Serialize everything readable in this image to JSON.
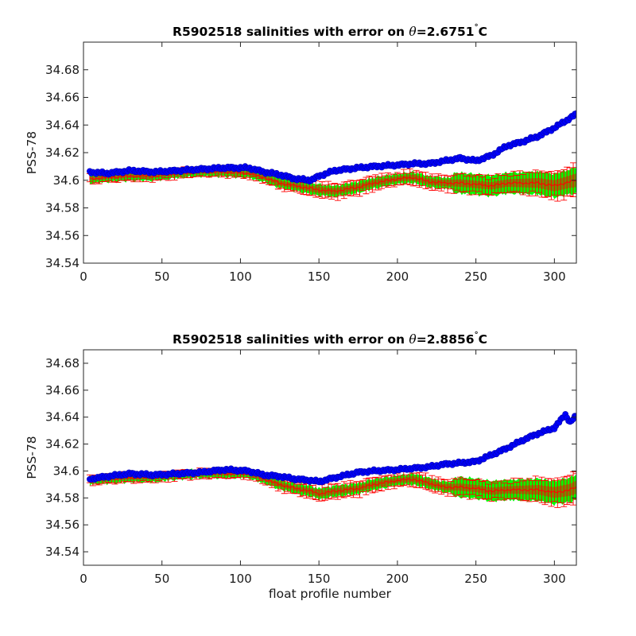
{
  "chart_data": [
    {
      "type": "line",
      "title": "R5902518 salinities with error on θ=2.6751°C",
      "title_prefix": "R5902518 salinities with error on ",
      "title_theta": "θ",
      "title_value": "=2.6751",
      "title_unit": "C",
      "xlabel": "",
      "ylabel": "PSS-78",
      "xlim": [
        0,
        314
      ],
      "ylim": [
        34.54,
        34.7
      ],
      "xticks": [
        0,
        50,
        100,
        150,
        200,
        250,
        300
      ],
      "yticks": [
        34.54,
        34.56,
        34.58,
        34.6,
        34.62,
        34.64,
        34.66,
        34.68
      ],
      "ytick_labels": [
        "34.54",
        "34.56",
        "34.58",
        "34.6",
        "34.62",
        "34.64",
        "34.66",
        "34.68"
      ],
      "grid": false,
      "colors": {
        "raw": "#0000ff",
        "corrected": "#ff0000",
        "fill": "#00ff00",
        "error_fill": "#808000"
      },
      "series": [
        {
          "role": "raw",
          "x": [
            4,
            15,
            30,
            45,
            60,
            75,
            90,
            105,
            115,
            125,
            135,
            145,
            150,
            160,
            175,
            185,
            200,
            210,
            220,
            230,
            240,
            250,
            260,
            270,
            280,
            290,
            300,
            310,
            314
          ],
          "y": [
            34.606,
            34.605,
            34.607,
            34.606,
            34.607,
            34.608,
            34.609,
            34.609,
            34.606,
            34.604,
            34.601,
            34.6,
            34.603,
            34.607,
            34.609,
            34.61,
            34.611,
            34.612,
            34.612,
            34.614,
            34.616,
            34.614,
            34.618,
            34.625,
            34.628,
            34.632,
            34.638,
            34.645,
            34.648
          ]
        },
        {
          "role": "corrected",
          "x": [
            4,
            15,
            30,
            45,
            60,
            75,
            90,
            105,
            115,
            125,
            135,
            145,
            150,
            160,
            175,
            185,
            200,
            210,
            220,
            230,
            240,
            250,
            260,
            270,
            280,
            290,
            300,
            310,
            314
          ],
          "y": [
            34.601,
            34.602,
            34.603,
            34.603,
            34.605,
            34.606,
            34.606,
            34.605,
            34.602,
            34.598,
            34.596,
            34.594,
            34.593,
            34.592,
            34.595,
            34.598,
            34.601,
            34.602,
            34.599,
            34.598,
            34.598,
            34.597,
            34.596,
            34.598,
            34.598,
            34.598,
            34.596,
            34.599,
            34.6
          ],
          "error": [
            0.003,
            0.003,
            0.003,
            0.003,
            0.003,
            0.003,
            0.003,
            0.003,
            0.003,
            0.004,
            0.004,
            0.005,
            0.005,
            0.005,
            0.005,
            0.005,
            0.004,
            0.005,
            0.005,
            0.005,
            0.006,
            0.006,
            0.006,
            0.006,
            0.007,
            0.008,
            0.009,
            0.01,
            0.011
          ]
        }
      ]
    },
    {
      "type": "line",
      "title": "R5902518 salinities with error on θ=2.8856°C",
      "title_prefix": "R5902518 salinities with error on ",
      "title_theta": "θ",
      "title_value": "=2.8856",
      "title_unit": "C",
      "xlabel": "float profile number",
      "ylabel": "PSS-78",
      "xlim": [
        0,
        314
      ],
      "ylim": [
        34.53,
        34.69
      ],
      "xticks": [
        0,
        50,
        100,
        150,
        200,
        250,
        300
      ],
      "yticks": [
        34.54,
        34.56,
        34.58,
        34.6,
        34.62,
        34.64,
        34.66,
        34.68
      ],
      "ytick_labels": [
        "34.54",
        "34.56",
        "34.58",
        "34.6",
        "34.62",
        "34.64",
        "34.66",
        "34.68"
      ],
      "grid": false,
      "colors": {
        "raw": "#0000ff",
        "corrected": "#ff0000",
        "fill": "#00ff00",
        "error_fill": "#808000"
      },
      "series": [
        {
          "role": "raw",
          "x": [
            4,
            15,
            30,
            45,
            60,
            75,
            90,
            105,
            115,
            125,
            135,
            145,
            150,
            160,
            175,
            185,
            200,
            210,
            220,
            230,
            240,
            250,
            260,
            270,
            280,
            290,
            300,
            307,
            310,
            314
          ],
          "y": [
            34.594,
            34.596,
            34.598,
            34.597,
            34.598,
            34.599,
            34.601,
            34.6,
            34.597,
            34.596,
            34.594,
            34.593,
            34.592,
            34.595,
            34.599,
            34.6,
            34.601,
            34.602,
            34.603,
            34.605,
            34.606,
            34.607,
            34.612,
            34.617,
            34.623,
            34.628,
            34.632,
            34.642,
            34.636,
            34.641
          ]
        },
        {
          "role": "corrected",
          "x": [
            4,
            15,
            30,
            45,
            60,
            75,
            90,
            105,
            115,
            125,
            135,
            145,
            150,
            160,
            175,
            185,
            200,
            210,
            220,
            230,
            240,
            250,
            260,
            270,
            280,
            290,
            300,
            310,
            314
          ],
          "y": [
            34.593,
            34.594,
            34.595,
            34.595,
            34.597,
            34.598,
            34.598,
            34.598,
            34.594,
            34.59,
            34.587,
            34.585,
            34.583,
            34.585,
            34.587,
            34.59,
            34.593,
            34.594,
            34.591,
            34.588,
            34.588,
            34.587,
            34.585,
            34.586,
            34.586,
            34.586,
            34.584,
            34.586,
            34.588
          ],
          "error": [
            0.003,
            0.003,
            0.003,
            0.003,
            0.003,
            0.003,
            0.003,
            0.003,
            0.003,
            0.004,
            0.004,
            0.005,
            0.005,
            0.005,
            0.005,
            0.005,
            0.004,
            0.005,
            0.005,
            0.005,
            0.006,
            0.006,
            0.006,
            0.006,
            0.007,
            0.008,
            0.009,
            0.01,
            0.011
          ]
        }
      ]
    }
  ]
}
